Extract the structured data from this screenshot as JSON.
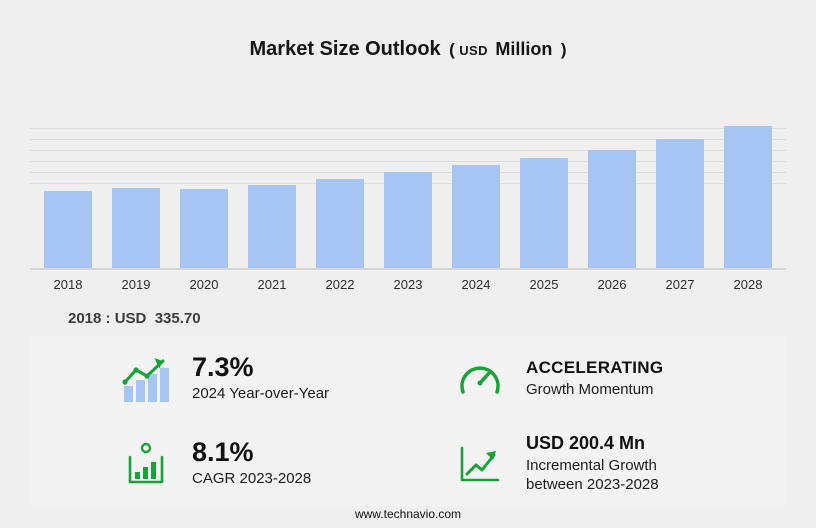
{
  "title": {
    "main": "Market Size Outlook",
    "paren_open": "(",
    "unit_small": "USD",
    "unit_large": "Million",
    "paren_close": ")"
  },
  "chart_data": {
    "type": "bar",
    "title": "Market Size Outlook (USD Million)",
    "ylabel": "USD Million",
    "categories": [
      "2018",
      "2019",
      "2020",
      "2021",
      "2022",
      "2023",
      "2024",
      "2025",
      "2026",
      "2027",
      "2028"
    ],
    "values": [
      335.7,
      351.2,
      347.5,
      364.5,
      388.6,
      421.2,
      451.9,
      482.5,
      517.3,
      563.0,
      621.6
    ],
    "ylim": [
      0,
      640
    ],
    "grid": true,
    "legend": false,
    "annotation": "2018 : USD  335.70"
  },
  "note": {
    "text": "2018 : USD  335.70"
  },
  "stats": [
    {
      "icon": "bar-trend-icon",
      "value": "7.3%",
      "label": "2024 Year-over-Year"
    },
    {
      "icon": "speedometer-icon",
      "value": "ACCELERATING",
      "label": "Growth Momentum"
    },
    {
      "icon": "cagr-bars-icon",
      "value": "8.1%",
      "label": "CAGR 2023-2028"
    },
    {
      "icon": "growth-line-icon",
      "value": "USD 200.4 Mn",
      "label": "Incremental Growth between 2023-2028"
    }
  ],
  "footer": {
    "url": "www.technavio.com"
  },
  "colors": {
    "bar": "#a6c4f4",
    "green": "#17a338",
    "background": "#efefef"
  }
}
